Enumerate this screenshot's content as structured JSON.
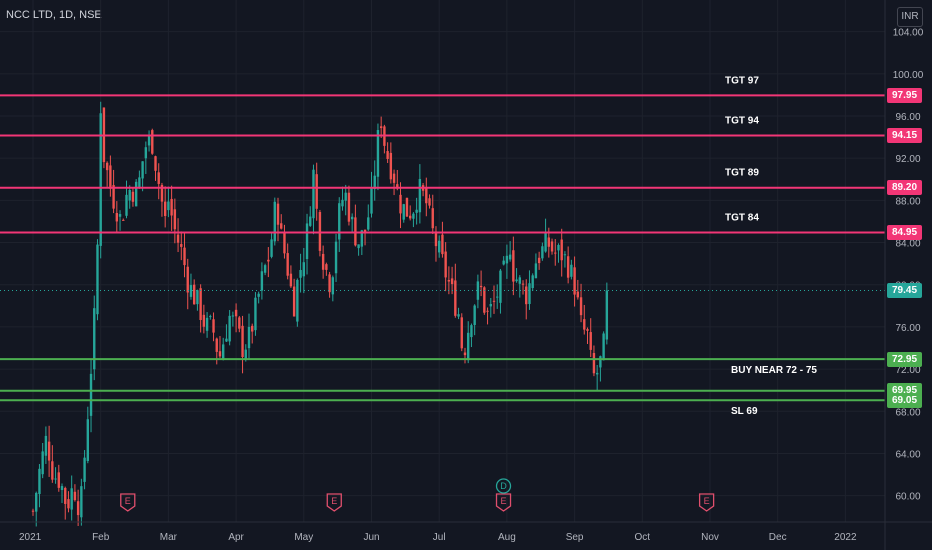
{
  "header": {
    "title": "NCC LTD, 1D, NSE",
    "currency": "INR"
  },
  "colors": {
    "bg": "#131722",
    "grid": "#1e222d",
    "up": "#26a69a",
    "down": "#ef5350",
    "resistance": "#f23676",
    "support": "#4caf50",
    "current": "#26a69a",
    "axis_text": "#b2b5be"
  },
  "chart_data": {
    "type": "candlestick",
    "title": "NCC LTD, 1D, NSE",
    "ylim": [
      57.5,
      107
    ],
    "y_ticks": [
      60,
      64,
      68,
      72,
      76,
      80,
      84,
      88,
      92,
      96,
      100,
      104
    ],
    "x_ticks": [
      "2021",
      "Feb",
      "Mar",
      "Apr",
      "May",
      "Jun",
      "Jul",
      "Aug",
      "Sep",
      "Oct",
      "Nov",
      "Dec",
      "2022"
    ],
    "current_price": 79.45,
    "levels": [
      {
        "value": 97.95,
        "label": "97.95",
        "annotation": "TGT 97",
        "kind": "resistance"
      },
      {
        "value": 94.15,
        "label": "94.15",
        "annotation": "TGT 94",
        "kind": "resistance"
      },
      {
        "value": 89.2,
        "label": "89.20",
        "annotation": "TGT 89",
        "kind": "resistance"
      },
      {
        "value": 84.95,
        "label": "84.95",
        "annotation": "TGT 84",
        "kind": "resistance"
      },
      {
        "value": 72.95,
        "label": "72.95",
        "annotation": "BUY NEAR 72 - 75",
        "kind": "support"
      },
      {
        "value": 69.95,
        "label": "69.95",
        "annotation": "",
        "kind": "support"
      },
      {
        "value": 69.05,
        "label": "69.05",
        "annotation": "SL 69",
        "kind": "support"
      }
    ],
    "events": [
      {
        "label": "E",
        "type": "earnings",
        "month_pos": 1.4
      },
      {
        "label": "E",
        "type": "earnings",
        "month_pos": 4.45
      },
      {
        "label": "E",
        "type": "earnings",
        "month_pos": 6.95
      },
      {
        "label": "D",
        "type": "dividend",
        "month_pos": 6.95
      },
      {
        "label": "E",
        "type": "earnings",
        "month_pos": 9.95
      }
    ],
    "close_anchors": [
      [
        0.0,
        58.5
      ],
      [
        0.1,
        62.5
      ],
      [
        0.2,
        65.5
      ],
      [
        0.3,
        62
      ],
      [
        0.4,
        61.5
      ],
      [
        0.5,
        59
      ],
      [
        0.6,
        61
      ],
      [
        0.7,
        58.5
      ],
      [
        0.8,
        67
      ],
      [
        0.9,
        76
      ],
      [
        0.95,
        83
      ],
      [
        1.0,
        97
      ],
      [
        1.05,
        92
      ],
      [
        1.15,
        89
      ],
      [
        1.3,
        86
      ],
      [
        1.4,
        89
      ],
      [
        1.55,
        89
      ],
      [
        1.65,
        93
      ],
      [
        1.75,
        94
      ],
      [
        1.85,
        90
      ],
      [
        1.95,
        86
      ],
      [
        2.0,
        88
      ],
      [
        2.1,
        85
      ],
      [
        2.2,
        83
      ],
      [
        2.3,
        80
      ],
      [
        2.45,
        78
      ],
      [
        2.55,
        76
      ],
      [
        2.65,
        76
      ],
      [
        2.75,
        73
      ],
      [
        2.9,
        77
      ],
      [
        3.0,
        76
      ],
      [
        3.1,
        74
      ],
      [
        3.2,
        75
      ],
      [
        3.3,
        78
      ],
      [
        3.4,
        81
      ],
      [
        3.5,
        83
      ],
      [
        3.55,
        86
      ],
      [
        3.6,
        88
      ],
      [
        3.65,
        85
      ],
      [
        3.75,
        82
      ],
      [
        3.85,
        78
      ],
      [
        3.9,
        80
      ],
      [
        4.0,
        83
      ],
      [
        4.05,
        85
      ],
      [
        4.1,
        88
      ],
      [
        4.15,
        91
      ],
      [
        4.2,
        86
      ],
      [
        4.3,
        82
      ],
      [
        4.4,
        80
      ],
      [
        4.5,
        86
      ],
      [
        4.6,
        89
      ],
      [
        4.7,
        86
      ],
      [
        4.8,
        84
      ],
      [
        4.9,
        85
      ],
      [
        5.0,
        88
      ],
      [
        5.05,
        91
      ],
      [
        5.1,
        94
      ],
      [
        5.15,
        96
      ],
      [
        5.2,
        93
      ],
      [
        5.25,
        92
      ],
      [
        5.35,
        90
      ],
      [
        5.4,
        88
      ],
      [
        5.5,
        87
      ],
      [
        5.6,
        87
      ],
      [
        5.7,
        89
      ],
      [
        5.8,
        88
      ],
      [
        5.9,
        85
      ],
      [
        6.0,
        83
      ],
      [
        6.1,
        81
      ],
      [
        6.2,
        79
      ],
      [
        6.3,
        77
      ],
      [
        6.35,
        73
      ],
      [
        6.4,
        75
      ],
      [
        6.5,
        78
      ],
      [
        6.6,
        80
      ],
      [
        6.7,
        77
      ],
      [
        6.8,
        78
      ],
      [
        6.9,
        80
      ],
      [
        7.0,
        82
      ],
      [
        7.05,
        84
      ],
      [
        7.1,
        81
      ],
      [
        7.2,
        80
      ],
      [
        7.3,
        79
      ],
      [
        7.4,
        82
      ],
      [
        7.5,
        83
      ],
      [
        7.6,
        84
      ],
      [
        7.7,
        83
      ],
      [
        7.8,
        83
      ],
      [
        7.9,
        82
      ],
      [
        8.0,
        80
      ],
      [
        8.05,
        78
      ],
      [
        8.1,
        76
      ],
      [
        8.2,
        75
      ],
      [
        8.25,
        72
      ],
      [
        8.3,
        71
      ],
      [
        8.4,
        73
      ],
      [
        8.45,
        75
      ],
      [
        8.5,
        79.45
      ]
    ]
  }
}
